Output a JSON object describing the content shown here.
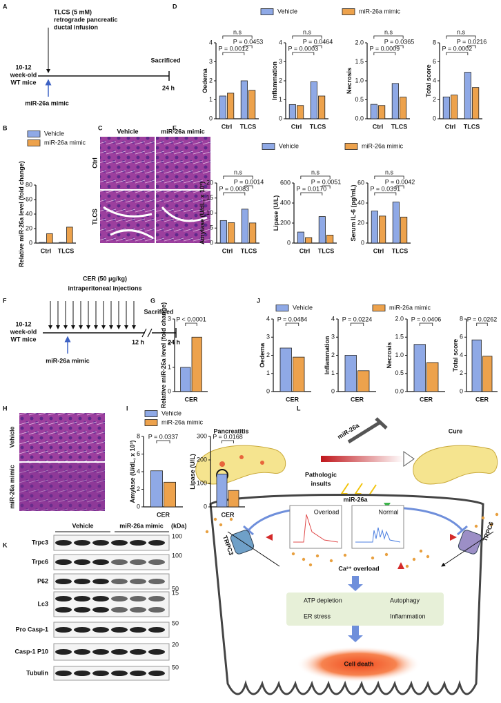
{
  "panel_labels": [
    "A",
    "B",
    "C",
    "D",
    "E",
    "F",
    "G",
    "H",
    "I",
    "J",
    "K",
    "L"
  ],
  "panel_a": {
    "treatment": [
      "TLCS (5 mM)",
      "retrograde pancreatic",
      "ductal infusion"
    ],
    "mice": [
      "10-12",
      "week-old",
      "WT mice"
    ],
    "end": "Sacrificed",
    "time": "24 h",
    "injection": "miR-26a mimic"
  },
  "panel_c": {
    "columns": [
      "Vehicle",
      "miR-26a mimic"
    ],
    "rows": [
      "Ctrl",
      "TLCS"
    ]
  },
  "panel_f": {
    "treatment": [
      "CER (50 μg/kg)",
      "intraperitoneal injections"
    ],
    "mice": [
      "10-12",
      "week-old",
      "WT mice"
    ],
    "end": "Sacrificed",
    "times": [
      "12 h",
      "24 h"
    ],
    "injection": "miR-26a mimic"
  },
  "panel_h": {
    "rows": [
      "Vehicle",
      "miR-26a mimic"
    ]
  },
  "panel_k": {
    "groups": [
      "Vehicle",
      "miR-26a mimic"
    ],
    "unit": "(kDa)",
    "rows": [
      {
        "label": "Trpc3",
        "marker": 100
      },
      {
        "label": "Trpc6",
        "marker": 100
      },
      {
        "label": "P62",
        "marker": 50
      },
      {
        "label": "Lc3",
        "marker": 15
      },
      {
        "label": "Pro Casp-1",
        "marker": 50
      },
      {
        "label": "Casp-1 P10",
        "marker": 20
      },
      {
        "label": "Tubulin",
        "marker": 50
      }
    ]
  },
  "panel_l": {
    "left": "Pancreatitis",
    "right": "Cure",
    "drug": "miR-26a",
    "insults": [
      "Pathologic",
      "insults"
    ],
    "center": "miR-26a",
    "channels": [
      "TRPC3",
      "TRPC6"
    ],
    "insets": [
      "Overload",
      "Normal"
    ],
    "calcium": "Ca²⁺ overload",
    "effects": [
      "ATP depletion",
      "Autophagy",
      "ER stress",
      "Inflammation"
    ],
    "outcome": "Cell death"
  },
  "chart_data": [
    {
      "type": "bar",
      "ylabel": "Relative miR-26a level (fold change)",
      "categories": [
        "Ctrl",
        "TLCS"
      ],
      "series": [
        {
          "name": "Vehicle",
          "color": "#8fa9e6",
          "values": [
            1,
            1
          ]
        },
        {
          "name": "miR-26a mimic",
          "color": "#eda24c",
          "values": [
            13,
            22
          ]
        }
      ],
      "ylim": [
        0,
        80
      ],
      "yticks": [
        0,
        20,
        40,
        60,
        80
      ]
    },
    {
      "type": "bar",
      "ylabel": "Oedema",
      "categories": [
        "Ctrl",
        "TLCS"
      ],
      "series": [
        {
          "name": "Vehicle",
          "color": "#8fa9e6",
          "values": [
            1.2,
            2.0
          ]
        },
        {
          "name": "miR-26a mimic",
          "color": "#eda24c",
          "values": [
            1.35,
            1.5
          ]
        }
      ],
      "ylim": [
        0,
        4
      ],
      "yticks": [
        0,
        1,
        2,
        3,
        4
      ],
      "annotations": [
        "P = 0.0012",
        "P = 0.0453",
        "n.s"
      ]
    },
    {
      "type": "bar",
      "ylabel": "Inflammation",
      "categories": [
        "Ctrl",
        "TLCS"
      ],
      "series": [
        {
          "name": "Vehicle",
          "color": "#8fa9e6",
          "values": [
            0.75,
            1.95
          ]
        },
        {
          "name": "miR-26a mimic",
          "color": "#eda24c",
          "values": [
            0.7,
            1.2
          ]
        }
      ],
      "ylim": [
        0,
        4
      ],
      "yticks": [
        0,
        1,
        2,
        3,
        4
      ],
      "annotations": [
        "P = 0.0003",
        "P = 0.0464",
        "n.s"
      ]
    },
    {
      "type": "bar",
      "ylabel": "Necrosis",
      "categories": [
        "Ctrl",
        "TLCS"
      ],
      "series": [
        {
          "name": "Vehicle",
          "color": "#8fa9e6",
          "values": [
            0.38,
            0.93
          ]
        },
        {
          "name": "miR-26a mimic",
          "color": "#eda24c",
          "values": [
            0.35,
            0.57
          ]
        }
      ],
      "ylim": [
        0,
        2
      ],
      "yticks": [
        {
          "value": 0,
          "label": "0.0"
        },
        0.5,
        {
          "value": 1,
          "label": "1.0"
        },
        1.5,
        {
          "value": 2,
          "label": "2.0"
        }
      ],
      "annotations": [
        "P = 0.0009",
        "P = 0.0365",
        "n.s"
      ]
    },
    {
      "type": "bar",
      "ylabel": "Total score",
      "categories": [
        "Ctrl",
        "TLCS"
      ],
      "series": [
        {
          "name": "Vehicle",
          "color": "#8fa9e6",
          "values": [
            2.3,
            4.9
          ]
        },
        {
          "name": "miR-26a mimic",
          "color": "#eda24c",
          "values": [
            2.5,
            3.3
          ]
        }
      ],
      "ylim": [
        0,
        8
      ],
      "yticks": [
        0,
        2,
        4,
        6,
        8
      ],
      "annotations": [
        "P = 0.0002",
        "P = 0.0216",
        "n.s"
      ]
    },
    {
      "type": "bar",
      "ylabel": "Amylase (U/dL, x 10³)",
      "categories": [
        "Ctrl",
        "TLCS"
      ],
      "series": [
        {
          "name": "Vehicle",
          "color": "#8fa9e6",
          "values": [
            7.5,
            11.3
          ]
        },
        {
          "name": "miR-26a mimic",
          "color": "#eda24c",
          "values": [
            6.8,
            6.7
          ]
        }
      ],
      "ylim": [
        0,
        20
      ],
      "yticks": [
        0,
        5,
        10,
        15,
        20
      ],
      "annotations": [
        "P = 0.0083",
        "P = 0.0014",
        "n.s"
      ]
    },
    {
      "type": "bar",
      "ylabel": "Lipase (U/L)",
      "categories": [
        "Ctrl",
        "TLCS"
      ],
      "series": [
        {
          "name": "Vehicle",
          "color": "#8fa9e6",
          "values": [
            110,
            265
          ]
        },
        {
          "name": "miR-26a mimic",
          "color": "#eda24c",
          "values": [
            55,
            80
          ]
        }
      ],
      "ylim": [
        0,
        600
      ],
      "yticks": [
        0,
        200,
        400,
        600
      ],
      "annotations": [
        "P = 0.0170",
        "P = 0.0051",
        "n.s"
      ]
    },
    {
      "type": "bar",
      "ylabel": "Serum IL-6 (pg/mL)",
      "categories": [
        "Ctrl",
        "TLCS"
      ],
      "series": [
        {
          "name": "Vehicle",
          "color": "#8fa9e6",
          "values": [
            32,
            41
          ]
        },
        {
          "name": "miR-26a mimic",
          "color": "#eda24c",
          "values": [
            27,
            26
          ]
        }
      ],
      "ylim": [
        0,
        60
      ],
      "yticks": [
        0,
        20,
        40,
        60
      ],
      "annotations": [
        "P = 0.0391",
        "P = 0.0042",
        "n.s"
      ]
    },
    {
      "type": "bar",
      "ylabel": "Relative miR-26a level (fold change)",
      "categories": [
        "CER"
      ],
      "series": [
        {
          "name": "Vehicle",
          "color": "#8fa9e6",
          "values": [
            1.0
          ]
        },
        {
          "name": "miR-26a mimic",
          "color": "#eda24c",
          "values": [
            2.25
          ]
        }
      ],
      "ylim": [
        0,
        3
      ],
      "yticks": [
        0,
        1,
        2,
        3
      ],
      "annotations": [
        "P < 0.0001"
      ]
    },
    {
      "type": "bar",
      "ylabel": "Oedema",
      "categories": [
        "CER"
      ],
      "series": [
        {
          "name": "Vehicle",
          "color": "#8fa9e6",
          "values": [
            2.4
          ]
        },
        {
          "name": "miR-26a mimic",
          "color": "#eda24c",
          "values": [
            1.9
          ]
        }
      ],
      "ylim": [
        0,
        4
      ],
      "yticks": [
        0,
        1,
        2,
        3,
        4
      ],
      "annotations": [
        "P = 0.0484"
      ]
    },
    {
      "type": "bar",
      "ylabel": "Inflammation",
      "categories": [
        "CER"
      ],
      "series": [
        {
          "name": "Vehicle",
          "color": "#8fa9e6",
          "values": [
            2.0
          ]
        },
        {
          "name": "miR-26a mimic",
          "color": "#eda24c",
          "values": [
            1.15
          ]
        }
      ],
      "ylim": [
        0,
        4
      ],
      "yticks": [
        0,
        1,
        2,
        3,
        4
      ],
      "annotations": [
        "P = 0.0224"
      ]
    },
    {
      "type": "bar",
      "ylabel": "Necrosis",
      "categories": [
        "CER"
      ],
      "series": [
        {
          "name": "Vehicle",
          "color": "#8fa9e6",
          "values": [
            1.3
          ]
        },
        {
          "name": "miR-26a mimic",
          "color": "#eda24c",
          "values": [
            0.8
          ]
        }
      ],
      "ylim": [
        0,
        2
      ],
      "yticks": [
        {
          "value": 0,
          "label": "0.0"
        },
        0.5,
        {
          "value": 1,
          "label": "1.0"
        },
        1.5,
        {
          "value": 2,
          "label": "2.0"
        }
      ],
      "annotations": [
        "P = 0.0406"
      ]
    },
    {
      "type": "bar",
      "ylabel": "Total score",
      "categories": [
        "CER"
      ],
      "series": [
        {
          "name": "Vehicle",
          "color": "#8fa9e6",
          "values": [
            5.7
          ]
        },
        {
          "name": "miR-26a mimic",
          "color": "#eda24c",
          "values": [
            3.9
          ]
        }
      ],
      "ylim": [
        0,
        8
      ],
      "yticks": [
        0,
        2,
        4,
        6,
        8
      ],
      "annotations": [
        "P = 0.0262"
      ]
    },
    {
      "type": "bar",
      "ylabel": "Amylase (U/dL, x 10³)",
      "categories": [
        "CER"
      ],
      "series": [
        {
          "name": "Vehicle",
          "color": "#8fa9e6",
          "values": [
            4.1
          ]
        },
        {
          "name": "miR-26a mimic",
          "color": "#eda24c",
          "values": [
            2.8
          ]
        }
      ],
      "ylim": [
        0,
        8
      ],
      "yticks": [
        0,
        2,
        4,
        6,
        8
      ],
      "annotations": [
        "P = 0.0337"
      ]
    },
    {
      "type": "bar",
      "ylabel": "Lipase (U/L)",
      "categories": [
        "CER"
      ],
      "series": [
        {
          "name": "Vehicle",
          "color": "#8fa9e6",
          "values": [
            140
          ]
        },
        {
          "name": "miR-26a mimic",
          "color": "#eda24c",
          "values": [
            70
          ]
        }
      ],
      "ylim": [
        0,
        300
      ],
      "yticks": [
        0,
        100,
        200,
        300
      ],
      "annotations": [
        "P = 0.0168"
      ]
    }
  ]
}
